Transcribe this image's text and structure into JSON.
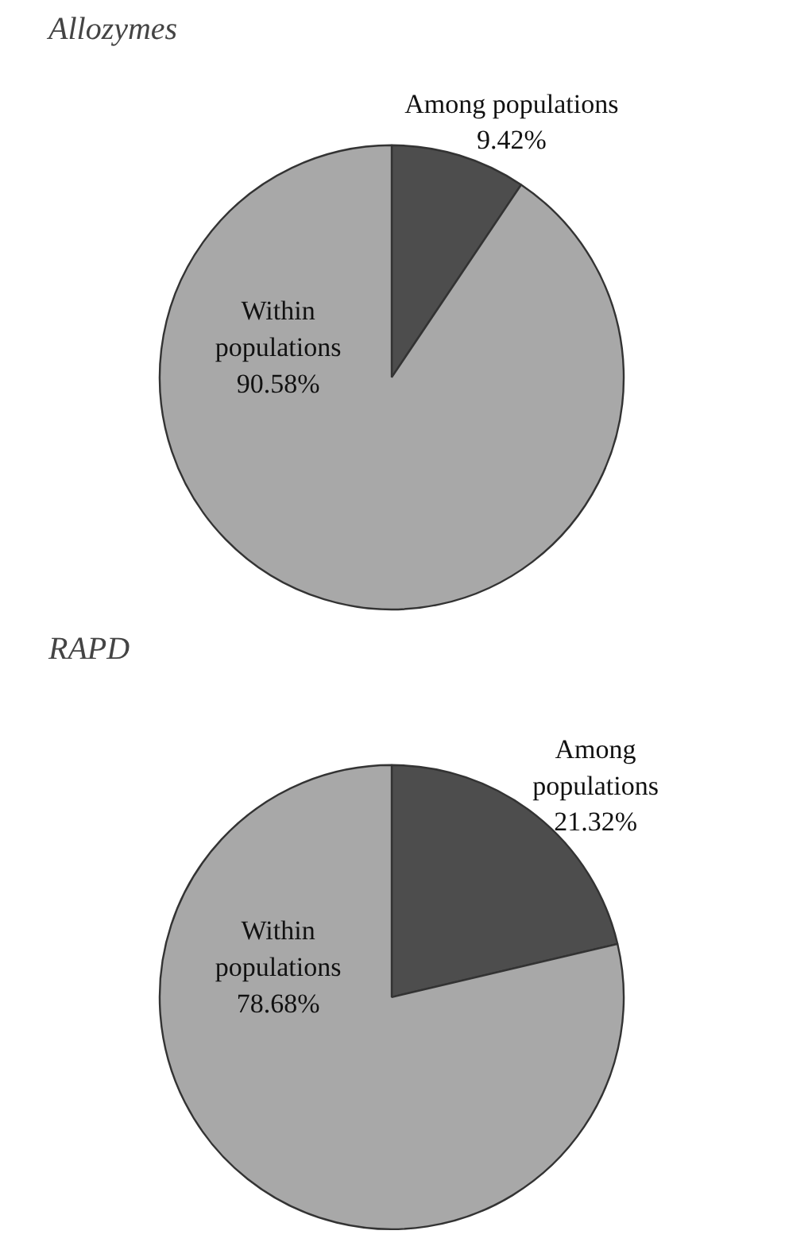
{
  "chart_data": [
    {
      "type": "pie",
      "title": "Allozymes",
      "categories": [
        "Among populations",
        "Within populations"
      ],
      "values": [
        9.42,
        90.58
      ],
      "colors": [
        "#4d4d4d",
        "#a8a8a8"
      ],
      "value_labels": [
        "9.42%",
        "90.58%"
      ]
    },
    {
      "type": "pie",
      "title": "RAPD",
      "categories": [
        "Among populations",
        "Within populations"
      ],
      "values": [
        21.32,
        78.68
      ],
      "colors": [
        "#4d4d4d",
        "#a8a8a8"
      ],
      "value_labels": [
        "21.32%",
        "78.68%"
      ]
    }
  ]
}
